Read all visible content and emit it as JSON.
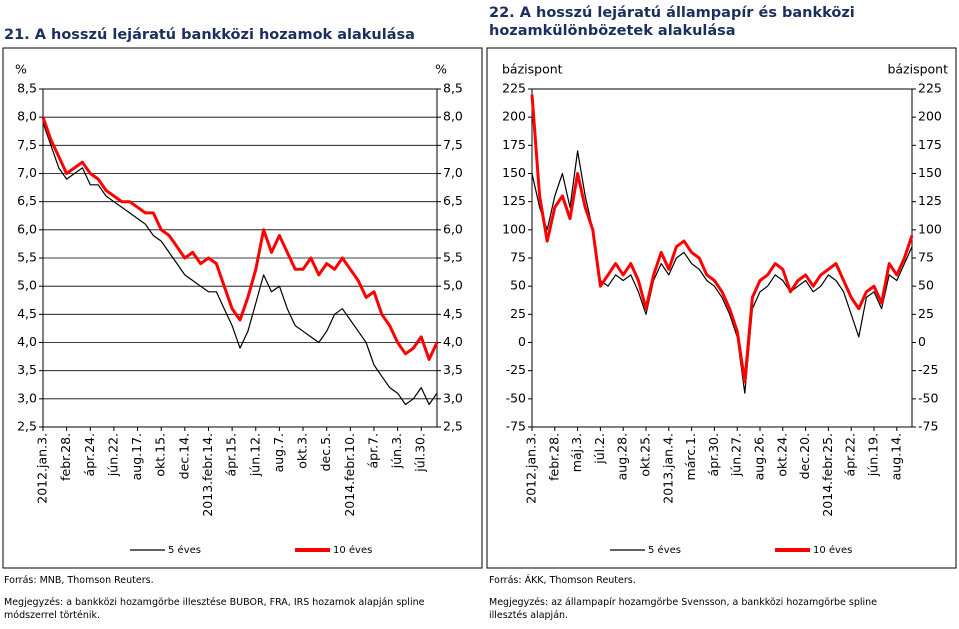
{
  "chart_data": [
    {
      "type": "line",
      "title": "21. A hosszú lejáratú bankközi hozamok alakulása",
      "unit_left": "%",
      "unit_right": "%",
      "categories": [
        "2012.jan.3.",
        null,
        null,
        "febr.28.",
        null,
        null,
        "ápr.24.",
        null,
        null,
        "jún.22.",
        null,
        null,
        "aug.17.",
        null,
        null,
        "okt.15.",
        null,
        null,
        "dec.14.",
        null,
        null,
        "2013.febr.14.",
        null,
        null,
        "ápr.15.",
        null,
        null,
        "jún.12.",
        null,
        null,
        "aug.7.",
        null,
        null,
        "okt.3.",
        null,
        null,
        "dec.5.",
        null,
        null,
        "2014.febr.10.",
        null,
        null,
        "ápr.7.",
        null,
        null,
        "jún.3.",
        null,
        null,
        "júl.30.",
        null,
        null
      ],
      "series": [
        {
          "name": "5 éves",
          "color": "#000000",
          "values": [
            7.9,
            7.5,
            7.1,
            6.9,
            7.0,
            7.1,
            6.8,
            6.8,
            6.6,
            6.5,
            6.4,
            6.3,
            6.2,
            6.1,
            5.9,
            5.8,
            5.6,
            5.4,
            5.2,
            5.1,
            5.0,
            4.9,
            4.9,
            4.6,
            4.3,
            3.9,
            4.2,
            4.7,
            5.2,
            4.9,
            5.0,
            4.6,
            4.3,
            4.2,
            4.1,
            4.0,
            4.2,
            4.5,
            4.6,
            4.4,
            4.2,
            4.0,
            3.6,
            3.4,
            3.2,
            3.1,
            2.9,
            3.0,
            3.2,
            2.9,
            3.1
          ]
        },
        {
          "name": "10 éves",
          "color": "#ff0000",
          "values": [
            8.0,
            7.6,
            7.3,
            7.0,
            7.1,
            7.2,
            7.0,
            6.9,
            6.7,
            6.6,
            6.5,
            6.5,
            6.4,
            6.3,
            6.3,
            6.0,
            5.9,
            5.7,
            5.5,
            5.6,
            5.4,
            5.5,
            5.4,
            5.0,
            4.6,
            4.4,
            4.8,
            5.3,
            6.0,
            5.6,
            5.9,
            5.6,
            5.3,
            5.3,
            5.5,
            5.2,
            5.4,
            5.3,
            5.5,
            5.3,
            5.1,
            4.8,
            4.9,
            4.5,
            4.3,
            4.0,
            3.8,
            3.9,
            4.1,
            3.7,
            4.0
          ]
        }
      ],
      "ylim": [
        2.5,
        8.5
      ],
      "yticks": [
        {
          "value": 8.5,
          "label": "8,5"
        },
        {
          "value": 8.0,
          "label": "8,0"
        },
        {
          "value": 7.5,
          "label": "7,5"
        },
        {
          "value": 7.0,
          "label": "7,0"
        },
        {
          "value": 6.5,
          "label": "6,5"
        },
        {
          "value": 6.0,
          "label": "6,0"
        },
        {
          "value": 5.5,
          "label": "5,5"
        },
        {
          "value": 5.0,
          "label": "5,0"
        },
        {
          "value": 4.5,
          "label": "4,5"
        },
        {
          "value": 4.0,
          "label": "4,0"
        },
        {
          "value": 3.5,
          "label": "3,5"
        },
        {
          "value": 3.0,
          "label": "3,0"
        },
        {
          "value": 2.5,
          "label": "2,5"
        }
      ],
      "grid": true,
      "source": "Forrás: MNB, Thomson Reuters.",
      "note": "Megjegyzés: a bankközi hozamgörbe illesztése BUBOR, FRA, IRS hozamok alapján spline módszerrel történik."
    },
    {
      "type": "line",
      "title": "22. A hosszú lejáratú állampapír és bankközi hozamkülönbözetek alakulása",
      "unit_left": "bázispont",
      "unit_right": "bázispont",
      "categories": [
        "2012.jan.3.",
        null,
        null,
        "febr.28.",
        null,
        null,
        "máj.3.",
        null,
        null,
        "júl.2.",
        null,
        null,
        "aug.28.",
        null,
        null,
        "okt.25.",
        null,
        null,
        "2013.jan.4.",
        null,
        null,
        "márc.1.",
        null,
        null,
        "ápr.30.",
        null,
        null,
        "jún.27.",
        null,
        null,
        "aug.26.",
        null,
        null,
        "okt.24.",
        null,
        null,
        "dec.20.",
        null,
        null,
        "2014.febr.25.",
        null,
        null,
        "ápr.22.",
        null,
        null,
        "jún.19.",
        null,
        null,
        "aug.14.",
        null,
        null
      ],
      "series": [
        {
          "name": "5 éves",
          "color": "#000000",
          "values": [
            150,
            120,
            100,
            130,
            150,
            120,
            170,
            130,
            100,
            55,
            50,
            60,
            55,
            60,
            45,
            25,
            55,
            70,
            60,
            75,
            80,
            70,
            65,
            55,
            50,
            40,
            25,
            5,
            -45,
            30,
            45,
            50,
            60,
            55,
            45,
            50,
            55,
            45,
            50,
            60,
            55,
            45,
            25,
            5,
            40,
            45,
            30,
            60,
            55,
            70,
            85
          ]
        },
        {
          "name": "10 éves",
          "color": "#ff0000",
          "values": [
            220,
            130,
            90,
            120,
            130,
            110,
            150,
            120,
            100,
            50,
            60,
            70,
            60,
            70,
            55,
            30,
            60,
            80,
            65,
            85,
            90,
            80,
            75,
            60,
            55,
            45,
            30,
            10,
            -35,
            40,
            55,
            60,
            70,
            65,
            45,
            55,
            60,
            50,
            60,
            65,
            70,
            55,
            40,
            30,
            45,
            50,
            35,
            70,
            60,
            75,
            95
          ]
        }
      ],
      "ylim": [
        -75,
        225
      ],
      "yticks": [
        225,
        200,
        175,
        150,
        125,
        100,
        75,
        50,
        25,
        0,
        -25,
        -50,
        -75
      ],
      "grid": false,
      "source": "Forrás: ÁKK, Thomson Reuters.",
      "note": "Megjegyzés: az állampapír hozamgörbe Svensson, a bankközi hozamgörbe spline illesztés alapján."
    }
  ]
}
